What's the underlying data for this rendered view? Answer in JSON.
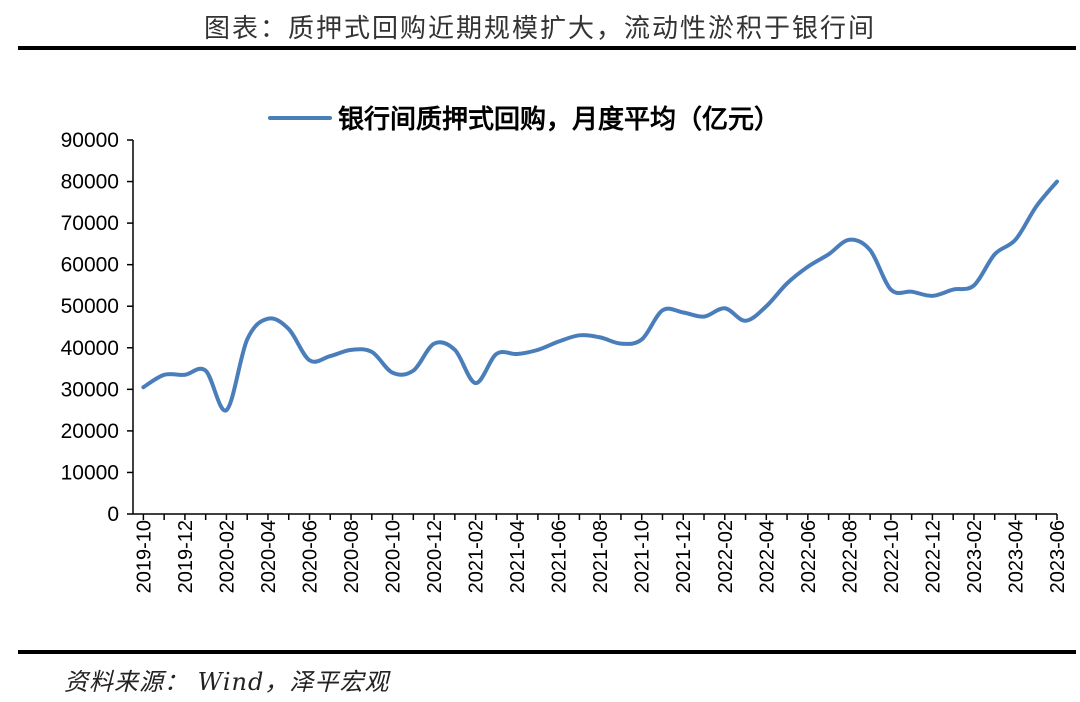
{
  "figure_title": "图表：质押式回购近期规模扩大，流动性淤积于银行间",
  "source_label": "资料来源：",
  "source_text": " Wind，泽平宏观",
  "colors": {
    "line": "#4a7ebb",
    "axis": "#000000",
    "rule": "#000000"
  },
  "chart_data": {
    "type": "line",
    "title": "",
    "xlabel": "",
    "ylabel": "",
    "ylim": [
      0,
      90000
    ],
    "y_ticks": [
      0,
      10000,
      20000,
      30000,
      40000,
      50000,
      60000,
      70000,
      80000,
      90000
    ],
    "x_tick_labels": [
      "2019-10",
      "2019-12",
      "2020-02",
      "2020-04",
      "2020-06",
      "2020-08",
      "2020-10",
      "2020-12",
      "2021-02",
      "2021-04",
      "2021-06",
      "2021-08",
      "2021-10",
      "2021-12",
      "2022-02",
      "2022-04",
      "2022-06",
      "2022-08",
      "2022-10",
      "2022-12",
      "2023-02",
      "2023-04",
      "2023-06"
    ],
    "grid": false,
    "legend_position": "top",
    "series": [
      {
        "name": "银行间质押式回购，月度平均（亿元）",
        "x": [
          "2019-10",
          "2019-11",
          "2019-12",
          "2020-01",
          "2020-02",
          "2020-03",
          "2020-04",
          "2020-05",
          "2020-06",
          "2020-07",
          "2020-08",
          "2020-09",
          "2020-10",
          "2020-11",
          "2020-12",
          "2021-01",
          "2021-02",
          "2021-03",
          "2021-04",
          "2021-05",
          "2021-06",
          "2021-07",
          "2021-08",
          "2021-09",
          "2021-10",
          "2021-11",
          "2021-12",
          "2022-01",
          "2022-02",
          "2022-03",
          "2022-04",
          "2022-05",
          "2022-06",
          "2022-07",
          "2022-08",
          "2022-09",
          "2022-10",
          "2022-11",
          "2022-12",
          "2023-01",
          "2023-02",
          "2023-03",
          "2023-04",
          "2023-05",
          "2023-06"
        ],
        "values": [
          30500,
          33500,
          33500,
          34500,
          25000,
          42000,
          47000,
          44500,
          37000,
          38000,
          39500,
          39000,
          34000,
          34500,
          41000,
          39500,
          31500,
          38500,
          38500,
          39500,
          41500,
          43000,
          42500,
          41000,
          42000,
          49000,
          48500,
          47500,
          49500,
          46500,
          50000,
          55500,
          59500,
          62500,
          66000,
          63500,
          54000,
          53500,
          52500,
          54000,
          55000,
          62500,
          66000,
          74000,
          80000
        ]
      }
    ]
  }
}
